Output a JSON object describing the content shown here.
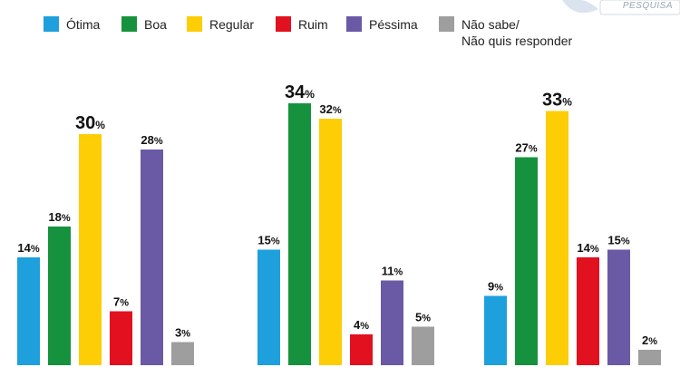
{
  "brand": {
    "logo_text": "PESQUISA"
  },
  "legend": [
    {
      "label": "Ótima",
      "color": "#1ea0dc"
    },
    {
      "label": "Boa",
      "color": "#16923e"
    },
    {
      "label": "Regular",
      "color": "#fdcd06"
    },
    {
      "label": "Ruim",
      "color": "#e1111f"
    },
    {
      "label": "Péssima",
      "color": "#6a5aa6"
    },
    {
      "label": "Não sabe/\nNão quis responder",
      "color": "#9e9e9e"
    }
  ],
  "chart_data": {
    "type": "bar",
    "title": "",
    "xlabel": "",
    "ylabel": "",
    "ylim": [
      0,
      34
    ],
    "value_suffix": "%",
    "categories": [
      "Ótima",
      "Boa",
      "Regular",
      "Ruim",
      "Péssima",
      "Não sabe/Não quis responder"
    ],
    "groups": [
      {
        "label": "",
        "values": [
          14,
          18,
          30,
          7,
          28,
          3
        ]
      },
      {
        "label": "",
        "values": [
          15,
          34,
          32,
          4,
          11,
          5
        ]
      },
      {
        "label": "",
        "values": [
          9,
          27,
          33,
          14,
          15,
          2
        ]
      }
    ],
    "highlight": "max value label drawn larger"
  }
}
